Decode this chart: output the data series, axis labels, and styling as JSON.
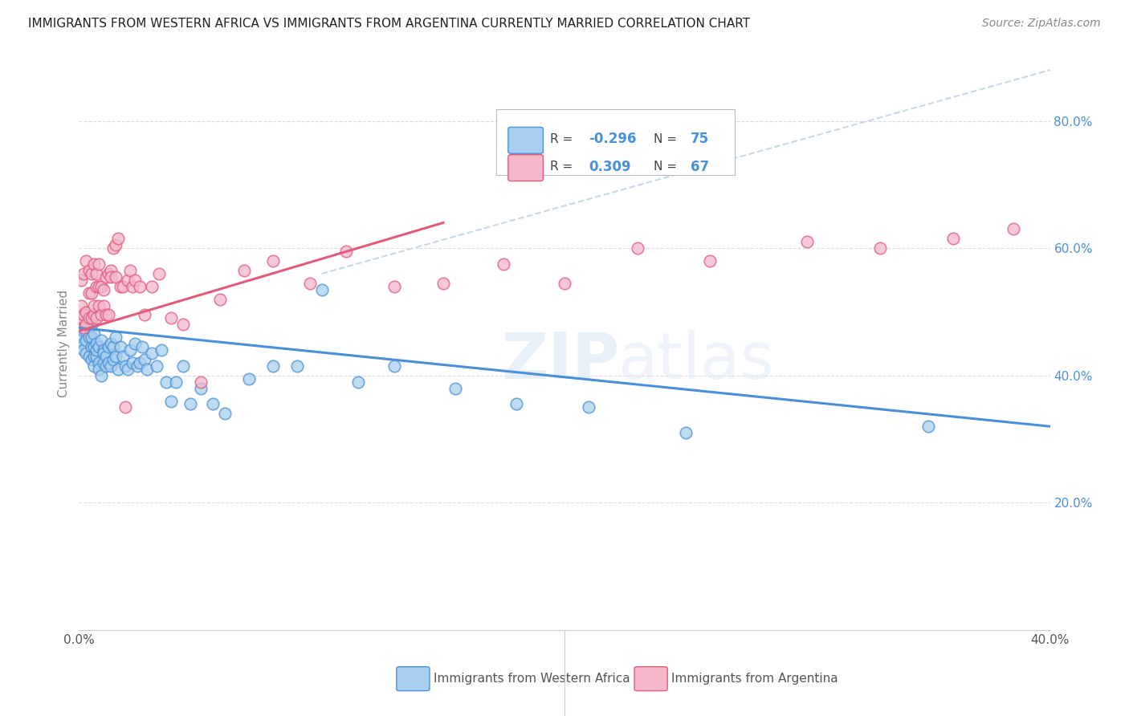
{
  "title": "IMMIGRANTS FROM WESTERN AFRICA VS IMMIGRANTS FROM ARGENTINA CURRENTLY MARRIED CORRELATION CHART",
  "source": "Source: ZipAtlas.com",
  "ylabel": "Currently Married",
  "x_label_legend1": "Immigrants from Western Africa",
  "x_label_legend2": "Immigrants from Argentina",
  "xlim": [
    0.0,
    0.4
  ],
  "ylim": [
    0.0,
    0.9
  ],
  "y_ticks_right": [
    0.2,
    0.4,
    0.6,
    0.8
  ],
  "y_tick_labels_right": [
    "20.0%",
    "40.0%",
    "60.0%",
    "80.0%"
  ],
  "R_blue": -0.296,
  "N_blue": 75,
  "R_pink": 0.309,
  "N_pink": 67,
  "color_blue": "#A8CFEE",
  "color_pink": "#F5B8CB",
  "color_blue_line": "#4A90D9",
  "color_pink_line": "#E05C7A",
  "color_trendline_dashed": "#C8D8E8",
  "watermark_zip": "ZIP",
  "watermark_atlas": "atlas",
  "blue_x": [
    0.001,
    0.001,
    0.002,
    0.002,
    0.002,
    0.003,
    0.003,
    0.003,
    0.004,
    0.004,
    0.004,
    0.005,
    0.005,
    0.005,
    0.005,
    0.006,
    0.006,
    0.006,
    0.006,
    0.007,
    0.007,
    0.007,
    0.008,
    0.008,
    0.008,
    0.009,
    0.009,
    0.01,
    0.01,
    0.01,
    0.011,
    0.011,
    0.012,
    0.012,
    0.013,
    0.013,
    0.014,
    0.014,
    0.015,
    0.015,
    0.016,
    0.017,
    0.018,
    0.019,
    0.02,
    0.021,
    0.022,
    0.023,
    0.024,
    0.025,
    0.026,
    0.027,
    0.028,
    0.03,
    0.032,
    0.034,
    0.036,
    0.038,
    0.04,
    0.043,
    0.046,
    0.05,
    0.055,
    0.06,
    0.07,
    0.08,
    0.09,
    0.1,
    0.115,
    0.13,
    0.155,
    0.18,
    0.21,
    0.25,
    0.35
  ],
  "blue_y": [
    0.48,
    0.46,
    0.45,
    0.47,
    0.44,
    0.455,
    0.435,
    0.47,
    0.43,
    0.46,
    0.475,
    0.425,
    0.445,
    0.46,
    0.48,
    0.43,
    0.415,
    0.445,
    0.465,
    0.43,
    0.45,
    0.44,
    0.42,
    0.41,
    0.445,
    0.455,
    0.4,
    0.44,
    0.42,
    0.435,
    0.43,
    0.415,
    0.445,
    0.42,
    0.45,
    0.415,
    0.425,
    0.445,
    0.43,
    0.46,
    0.41,
    0.445,
    0.43,
    0.415,
    0.41,
    0.44,
    0.42,
    0.45,
    0.415,
    0.42,
    0.445,
    0.425,
    0.41,
    0.435,
    0.415,
    0.44,
    0.39,
    0.36,
    0.39,
    0.415,
    0.355,
    0.38,
    0.355,
    0.34,
    0.395,
    0.415,
    0.415,
    0.535,
    0.39,
    0.415,
    0.38,
    0.355,
    0.35,
    0.31,
    0.32
  ],
  "pink_x": [
    0.001,
    0.001,
    0.001,
    0.002,
    0.002,
    0.002,
    0.003,
    0.003,
    0.003,
    0.004,
    0.004,
    0.004,
    0.005,
    0.005,
    0.005,
    0.006,
    0.006,
    0.006,
    0.007,
    0.007,
    0.007,
    0.008,
    0.008,
    0.008,
    0.009,
    0.009,
    0.01,
    0.01,
    0.011,
    0.011,
    0.012,
    0.012,
    0.013,
    0.013,
    0.014,
    0.015,
    0.015,
    0.016,
    0.017,
    0.018,
    0.019,
    0.02,
    0.021,
    0.022,
    0.023,
    0.025,
    0.027,
    0.03,
    0.033,
    0.038,
    0.043,
    0.05,
    0.058,
    0.068,
    0.08,
    0.095,
    0.11,
    0.13,
    0.15,
    0.175,
    0.2,
    0.23,
    0.26,
    0.3,
    0.33,
    0.36,
    0.385
  ],
  "pink_y": [
    0.51,
    0.49,
    0.55,
    0.475,
    0.56,
    0.495,
    0.48,
    0.58,
    0.5,
    0.49,
    0.565,
    0.53,
    0.56,
    0.49,
    0.53,
    0.495,
    0.575,
    0.51,
    0.56,
    0.49,
    0.54,
    0.51,
    0.575,
    0.54,
    0.495,
    0.54,
    0.51,
    0.535,
    0.495,
    0.555,
    0.56,
    0.495,
    0.565,
    0.555,
    0.6,
    0.555,
    0.605,
    0.615,
    0.54,
    0.54,
    0.35,
    0.55,
    0.565,
    0.54,
    0.55,
    0.54,
    0.495,
    0.54,
    0.56,
    0.49,
    0.48,
    0.39,
    0.52,
    0.565,
    0.58,
    0.545,
    0.595,
    0.54,
    0.545,
    0.575,
    0.545,
    0.6,
    0.58,
    0.61,
    0.6,
    0.615,
    0.63
  ],
  "blue_line_x0": 0.0,
  "blue_line_y0": 0.475,
  "blue_line_x1": 0.4,
  "blue_line_y1": 0.32,
  "pink_line_x0": 0.0,
  "pink_line_y0": 0.47,
  "pink_line_x1": 0.15,
  "pink_line_y1": 0.64,
  "dash_line_x0": 0.1,
  "dash_line_y0": 0.56,
  "dash_line_x1": 0.4,
  "dash_line_y1": 0.88
}
